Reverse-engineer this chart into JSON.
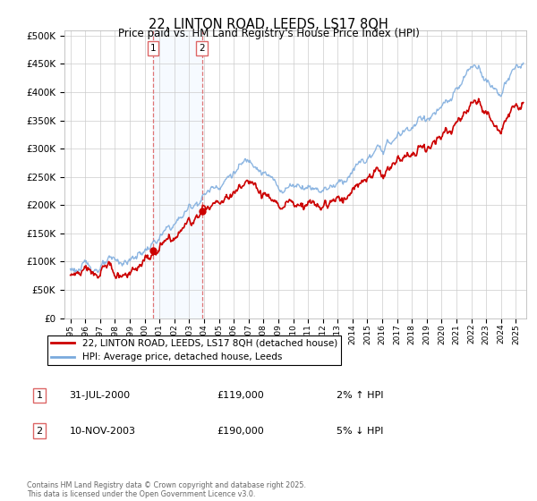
{
  "title": "22, LINTON ROAD, LEEDS, LS17 8QH",
  "subtitle": "Price paid vs. HM Land Registry's House Price Index (HPI)",
  "ytick_values": [
    0,
    50000,
    100000,
    150000,
    200000,
    250000,
    300000,
    350000,
    400000,
    450000,
    500000
  ],
  "ylim": [
    0,
    510000
  ],
  "legend_label_red": "22, LINTON ROAD, LEEDS, LS17 8QH (detached house)",
  "legend_label_blue": "HPI: Average price, detached house, Leeds",
  "transaction1_label": "1",
  "transaction1_date": "31-JUL-2000",
  "transaction1_price": "£119,000",
  "transaction1_hpi": "2% ↑ HPI",
  "transaction2_label": "2",
  "transaction2_date": "10-NOV-2003",
  "transaction2_price": "£190,000",
  "transaction2_hpi": "5% ↓ HPI",
  "footnote": "Contains HM Land Registry data © Crown copyright and database right 2025.\nThis data is licensed under the Open Government Licence v3.0.",
  "red_color": "#cc0000",
  "blue_color": "#7aaadd",
  "vline_color": "#dd6666",
  "shade_color": "#ddeeff",
  "marker1_x": 2000.58,
  "marker1_y": 119000,
  "marker2_x": 2003.86,
  "marker2_y": 190000,
  "vline1_x": 2000.58,
  "vline2_x": 2003.86,
  "xlim_left": 1994.6,
  "xlim_right": 2025.7
}
